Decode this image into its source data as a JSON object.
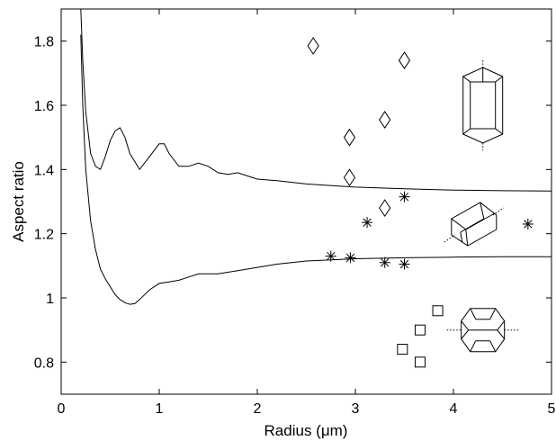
{
  "chart_data": {
    "type": "scatter",
    "title": "",
    "xlabel": "Radius (μm)",
    "ylabel": "Aspect ratio",
    "xlim": [
      0,
      5
    ],
    "ylim": [
      0.7,
      1.9
    ],
    "x_ticks": [
      0,
      1,
      2,
      3,
      4,
      5
    ],
    "x_tick_labels": [
      "0",
      "1",
      "2",
      "3",
      "4",
      "5"
    ],
    "y_ticks": [
      0.8,
      1.0,
      1.2,
      1.4,
      1.6,
      1.8
    ],
    "y_tick_labels": [
      "0.8",
      "1",
      "1.2",
      "1.4",
      "1.6",
      "1.8"
    ],
    "grid": false,
    "colors": {
      "foreground": "#000000",
      "background": "#ffffff"
    },
    "series": [
      {
        "type": "line",
        "x": [
          0.2,
          0.22,
          0.25,
          0.3,
          0.35,
          0.4,
          0.45,
          0.5,
          0.55,
          0.6,
          0.65,
          0.7,
          0.8,
          0.9,
          1.0,
          1.05,
          1.1,
          1.2,
          1.3,
          1.4,
          1.5,
          1.6,
          1.7,
          1.8,
          1.9,
          2.0,
          2.2,
          2.5,
          3.0,
          3.5,
          4.0,
          4.5,
          5.0
        ],
        "y": [
          1.9,
          1.74,
          1.58,
          1.45,
          1.41,
          1.4,
          1.44,
          1.49,
          1.52,
          1.53,
          1.5,
          1.45,
          1.4,
          1.44,
          1.48,
          1.48,
          1.45,
          1.41,
          1.41,
          1.42,
          1.41,
          1.39,
          1.385,
          1.39,
          1.38,
          1.37,
          1.365,
          1.355,
          1.345,
          1.34,
          1.336,
          1.334,
          1.333
        ]
      },
      {
        "type": "line",
        "x": [
          0.2,
          0.22,
          0.25,
          0.3,
          0.35,
          0.4,
          0.45,
          0.5,
          0.55,
          0.6,
          0.65,
          0.7,
          0.75,
          0.8,
          0.9,
          1.0,
          1.1,
          1.2,
          1.3,
          1.4,
          1.5,
          1.6,
          1.7,
          1.8,
          2.0,
          2.2,
          2.5,
          3.0,
          3.5,
          4.0,
          4.5,
          5.0
        ],
        "y": [
          1.82,
          1.6,
          1.4,
          1.24,
          1.15,
          1.09,
          1.06,
          1.035,
          1.01,
          0.995,
          0.985,
          0.98,
          0.982,
          0.995,
          1.025,
          1.045,
          1.05,
          1.055,
          1.065,
          1.075,
          1.075,
          1.075,
          1.08,
          1.085,
          1.095,
          1.105,
          1.115,
          1.122,
          1.125,
          1.127,
          1.128,
          1.128
        ]
      },
      {
        "type": "scatter",
        "marker": "diamond",
        "x": [
          2.57,
          3.5,
          3.3,
          2.94,
          2.94,
          3.3
        ],
        "y": [
          1.785,
          1.74,
          1.555,
          1.5,
          1.375,
          1.28
        ]
      },
      {
        "type": "scatter",
        "marker": "asterisk",
        "x": [
          3.12,
          3.5,
          2.75,
          2.95,
          3.3,
          3.5,
          4.76
        ],
        "y": [
          1.235,
          1.315,
          1.13,
          1.125,
          1.11,
          1.105,
          1.23
        ]
      },
      {
        "type": "scatter",
        "marker": "square",
        "x": [
          3.84,
          3.66,
          3.48,
          3.66
        ],
        "y": [
          0.96,
          0.9,
          0.84,
          0.8
        ]
      }
    ],
    "insets": [
      {
        "icon": "hexagonal-prism-tall-icon",
        "x": 4.3,
        "y": 1.6
      },
      {
        "icon": "hexagonal-prism-tilted-icon",
        "x": 4.2,
        "y": 1.23
      },
      {
        "icon": "hexagonal-prism-flat-icon",
        "x": 4.3,
        "y": 0.9
      }
    ]
  }
}
